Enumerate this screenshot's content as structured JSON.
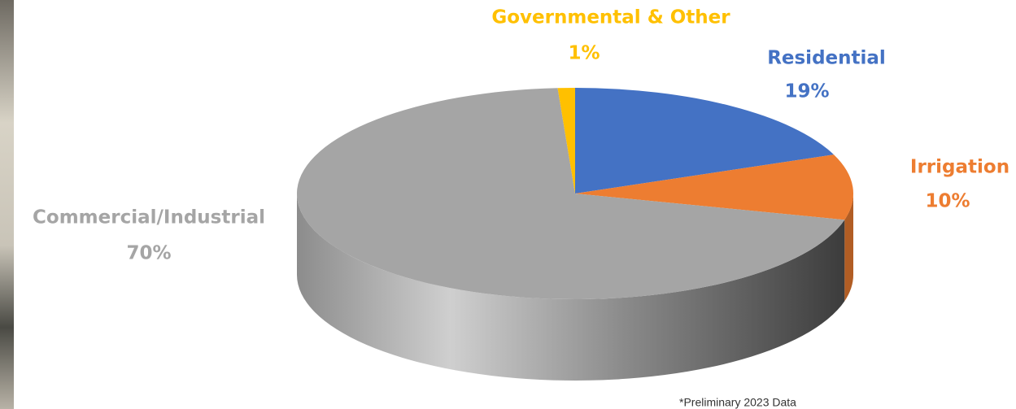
{
  "chart_data": {
    "type": "pie",
    "categories": [
      "Residential",
      "Irrigation",
      "Commercial/Industrial",
      "Governmental & Other"
    ],
    "values": [
      19,
      10,
      70,
      1
    ],
    "value_labels": [
      "19%",
      "10%",
      "70%",
      "1%"
    ],
    "colors": [
      "#4472C4",
      "#ED7D31",
      "#A5A5A5",
      "#FFC000"
    ],
    "footnote": "*Preliminary 2023 Data"
  }
}
